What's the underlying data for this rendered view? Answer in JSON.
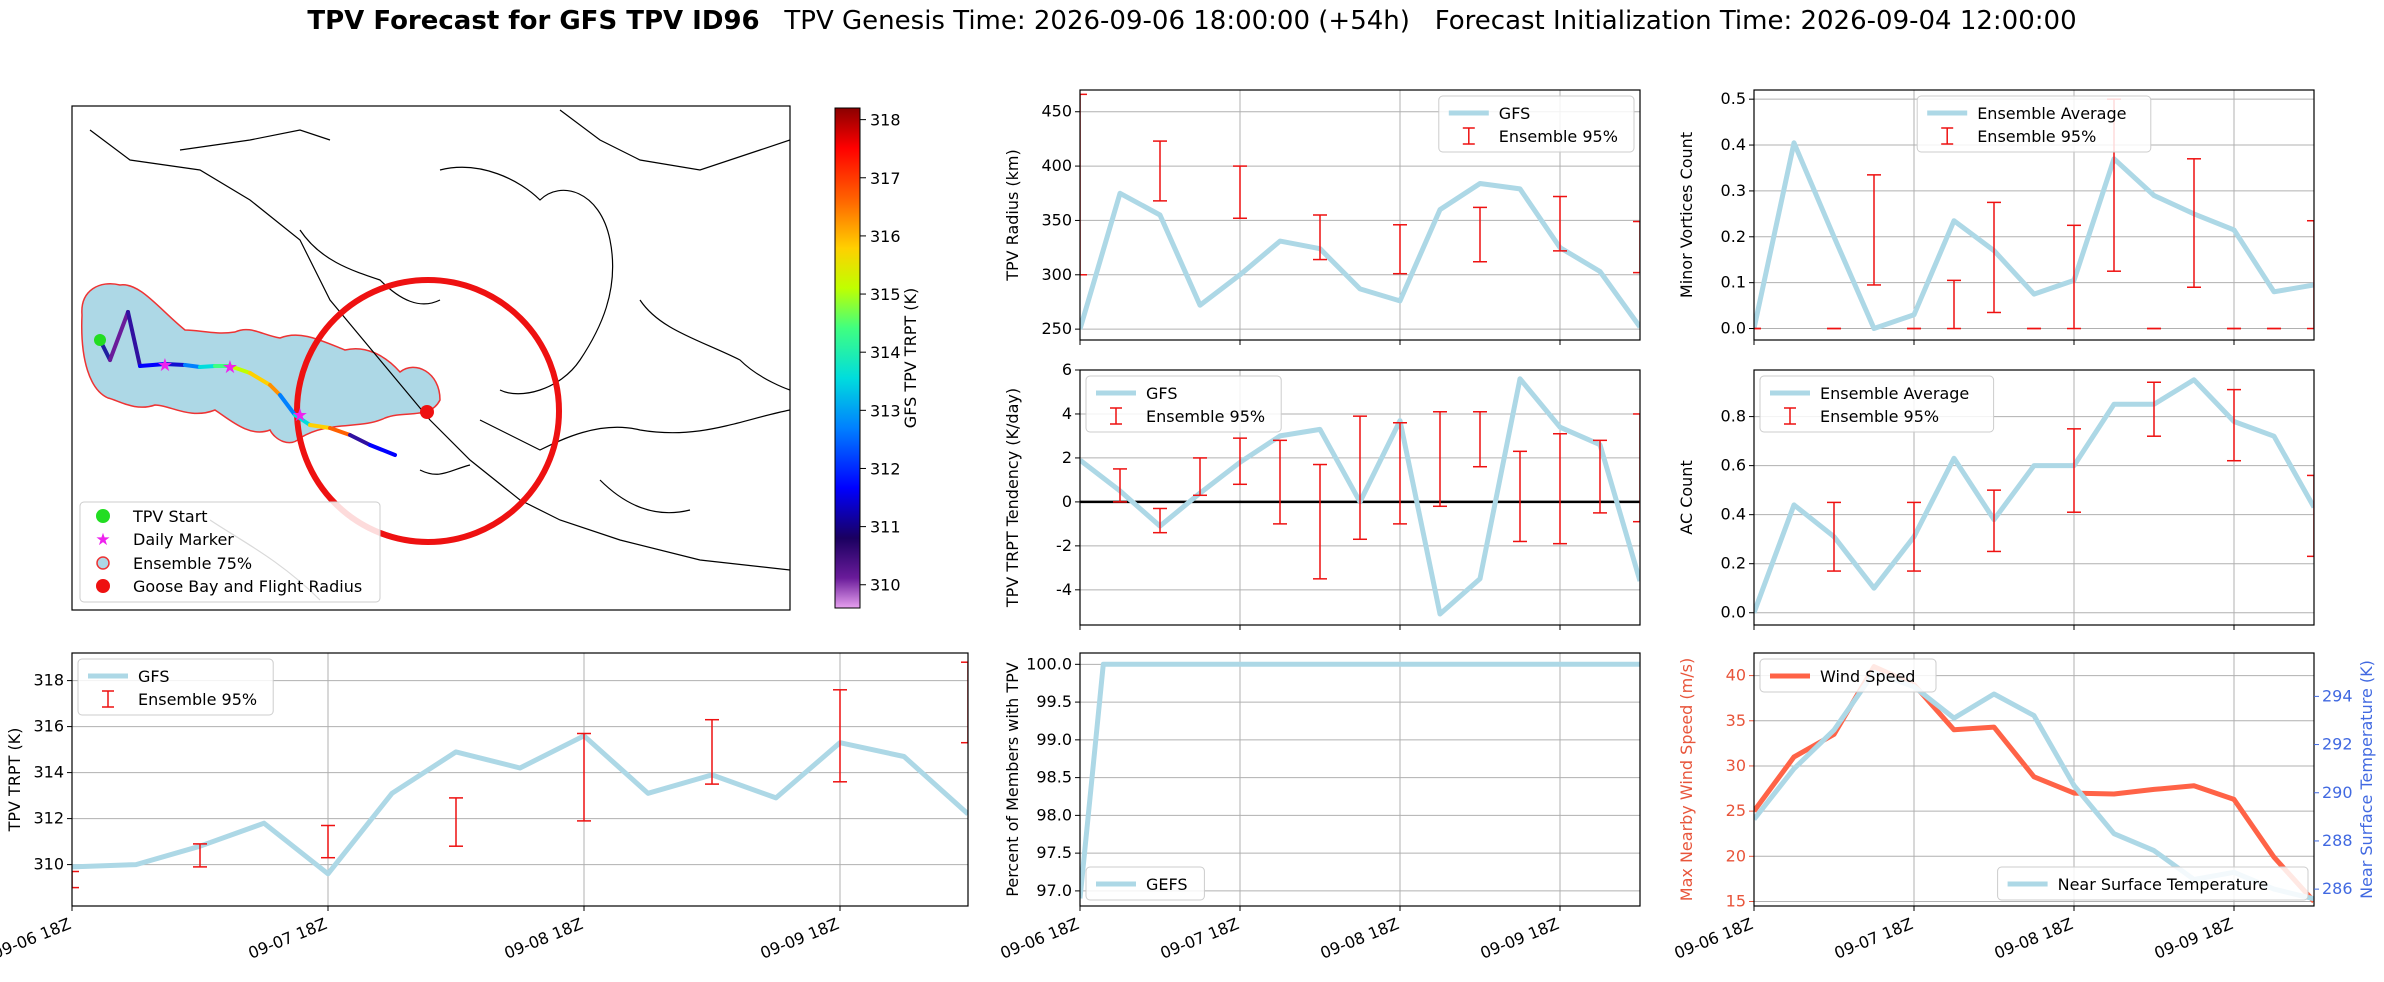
{
  "header": {
    "bold_title": "TPV Forecast for GFS TPV ID96",
    "genesis": "TPV Genesis Time: 2026-09-06 18:00:00 (+54h)",
    "init": "Forecast Initialization Time: 2026-09-04 12:00:00"
  },
  "time_ticks": [
    "09-06 18Z",
    "09-07 18Z",
    "09-08 18Z",
    "09-09 18Z"
  ],
  "chart_data": [
    {
      "id": "map",
      "type": "scatter",
      "colorbar": {
        "label": "GFS TPV TRPT (K)",
        "ticks": [
          310,
          311,
          312,
          313,
          314,
          315,
          316,
          317,
          318
        ],
        "range": [
          309.6,
          318.2
        ],
        "colormap": "rainbow"
      },
      "legend": [
        "TPV Start",
        "Daily Marker",
        "Ensemble 75%",
        "Goose Bay and Flight Radius"
      ],
      "legend_colors": [
        "#22dd22",
        "#ee22ee",
        "#add8e6",
        "#ee1111"
      ]
    },
    {
      "id": "radius",
      "type": "line",
      "ylabel": "TPV Radius (km)",
      "ylim": [
        240,
        470
      ],
      "yticks": [
        250,
        300,
        350,
        400,
        450
      ],
      "x_range": [
        0,
        84
      ],
      "x_ticks": [
        0,
        24,
        48,
        72
      ],
      "legend": [
        "GFS",
        "Ensemble 95%"
      ],
      "legend_position": "top-right",
      "series": [
        {
          "name": "GFS",
          "color": "#add8e6",
          "x": [
            0,
            6,
            12,
            18,
            24,
            30,
            36,
            42,
            48,
            54,
            60,
            66,
            72,
            78,
            84
          ],
          "y": [
            250,
            375,
            355,
            272,
            300,
            331,
            324,
            287,
            276,
            360,
            384,
            379,
            325,
            303,
            252
          ]
        }
      ],
      "errorbars": {
        "name": "Ensemble 95%",
        "color": "#ee1111",
        "x": [
          0,
          12,
          24,
          36,
          48,
          60,
          72,
          84
        ],
        "low": [
          300,
          368,
          352,
          314,
          301,
          312,
          322,
          302
        ],
        "high": [
          466,
          423,
          400,
          355,
          346,
          362,
          372,
          349
        ]
      }
    },
    {
      "id": "minor",
      "type": "line",
      "ylabel": "Minor Vortices Count",
      "ylim": [
        -0.025,
        0.52
      ],
      "yticks": [
        0.0,
        0.1,
        0.2,
        0.3,
        0.4,
        0.5
      ],
      "x_range": [
        0,
        84
      ],
      "x_ticks": [
        0,
        24,
        48,
        72
      ],
      "legend": [
        "Ensemble Average",
        "Ensemble 95%"
      ],
      "legend_position": "top-center",
      "series": [
        {
          "name": "Ensemble Average",
          "color": "#add8e6",
          "x": [
            0,
            6,
            12,
            18,
            24,
            30,
            36,
            42,
            48,
            54,
            60,
            66,
            72,
            78,
            84
          ],
          "y": [
            0.0,
            0.405,
            0.2,
            0.0,
            0.03,
            0.235,
            0.17,
            0.075,
            0.105,
            0.37,
            0.29,
            0.25,
            0.215,
            0.08,
            0.095
          ]
        }
      ],
      "errorbars": {
        "name": "Ensemble 95%",
        "color": "#ee1111",
        "x": [
          0,
          12,
          18,
          24,
          30,
          36,
          42,
          48,
          54,
          60,
          66,
          72,
          78,
          84
        ],
        "low": [
          0.0,
          0.0,
          0.095,
          0.0,
          0.0,
          0.035,
          0.0,
          0.0,
          0.125,
          0.0,
          0.09,
          0.0,
          0.0,
          0.0
        ],
        "high": [
          0.0,
          0.0,
          0.335,
          0.0,
          0.105,
          0.275,
          0.0,
          0.225,
          0.5,
          0.0,
          0.37,
          0.0,
          0.0,
          0.235
        ]
      }
    },
    {
      "id": "tendency",
      "type": "line",
      "ylabel": "TPV TRPT Tendency (K/day)",
      "ylim": [
        -5.6,
        6.0
      ],
      "yticks": [
        -4,
        -2,
        0,
        2,
        4,
        6
      ],
      "x_range": [
        0,
        84
      ],
      "x_ticks": [
        0,
        24,
        48,
        72
      ],
      "legend": [
        "GFS",
        "Ensemble 95%"
      ],
      "legend_position": "top-left",
      "series": [
        {
          "name": "GFS",
          "color": "#add8e6",
          "x": [
            0,
            6,
            12,
            18,
            24,
            30,
            36,
            42,
            48,
            54,
            60,
            66,
            72,
            78,
            84
          ],
          "y": [
            1.9,
            0.5,
            -1.1,
            0.4,
            1.8,
            3.0,
            3.3,
            0.0,
            3.7,
            -5.1,
            -3.5,
            5.6,
            3.4,
            2.6,
            -3.6
          ]
        }
      ],
      "errorbars": {
        "name": "Ensemble 95%",
        "color": "#ee1111",
        "x": [
          6,
          12,
          18,
          24,
          30,
          36,
          42,
          48,
          54,
          60,
          66,
          72,
          78,
          84
        ],
        "low": [
          0.0,
          -1.4,
          0.3,
          0.8,
          -1.0,
          -3.5,
          -1.7,
          -1.0,
          -0.2,
          1.6,
          -1.8,
          -1.9,
          -0.5,
          -0.9
        ],
        "high": [
          1.5,
          -0.3,
          2.0,
          2.9,
          2.8,
          1.7,
          3.9,
          3.6,
          4.1,
          4.1,
          2.3,
          3.1,
          2.8,
          4.0
        ]
      }
    },
    {
      "id": "ac",
      "type": "line",
      "ylabel": "AC Count",
      "ylim": [
        -0.05,
        0.99
      ],
      "yticks": [
        0.0,
        0.2,
        0.4,
        0.6,
        0.8
      ],
      "x_range": [
        0,
        84
      ],
      "x_ticks": [
        0,
        24,
        48,
        72
      ],
      "legend": [
        "Ensemble Average",
        "Ensemble 95%"
      ],
      "legend_position": "top-left",
      "series": [
        {
          "name": "Ensemble Average",
          "color": "#add8e6",
          "x": [
            0,
            6,
            12,
            18,
            24,
            30,
            36,
            42,
            48,
            54,
            60,
            66,
            72,
            78,
            84
          ],
          "y": [
            0.0,
            0.44,
            0.31,
            0.1,
            0.31,
            0.63,
            0.38,
            0.6,
            0.6,
            0.85,
            0.85,
            0.95,
            0.78,
            0.72,
            0.43
          ]
        }
      ],
      "errorbars": {
        "name": "Ensemble 95%",
        "color": "#ee1111",
        "x": [
          12,
          24,
          36,
          48,
          60,
          72,
          84
        ],
        "low": [
          0.17,
          0.17,
          0.25,
          0.41,
          0.72,
          0.62,
          0.23
        ],
        "high": [
          0.45,
          0.45,
          0.5,
          0.75,
          0.94,
          0.91,
          0.56
        ]
      }
    },
    {
      "id": "trpt",
      "type": "line",
      "ylabel": "TPV TRPT (K)",
      "ylim": [
        308.2,
        319.2
      ],
      "yticks": [
        310,
        312,
        314,
        316,
        318
      ],
      "x_range": [
        0,
        84
      ],
      "x_ticks": [
        0,
        24,
        48,
        72
      ],
      "legend": [
        "GFS",
        "Ensemble 95%"
      ],
      "legend_position": "top-left",
      "series": [
        {
          "name": "GFS",
          "color": "#add8e6",
          "x": [
            0,
            6,
            12,
            18,
            24,
            30,
            36,
            42,
            48,
            54,
            60,
            66,
            72,
            78,
            84
          ],
          "y": [
            309.9,
            310.0,
            310.8,
            311.8,
            309.6,
            313.1,
            314.9,
            314.2,
            315.6,
            313.1,
            313.9,
            312.9,
            315.3,
            314.7,
            312.2
          ]
        }
      ],
      "errorbars": {
        "name": "Ensemble 95%",
        "color": "#ee1111",
        "x": [
          0,
          12,
          24,
          36,
          48,
          60,
          72,
          84
        ],
        "low": [
          309.0,
          309.9,
          310.3,
          310.8,
          311.9,
          313.5,
          313.6,
          315.3
        ],
        "high": [
          309.7,
          310.9,
          311.7,
          312.9,
          315.7,
          316.3,
          317.6,
          318.8
        ]
      }
    },
    {
      "id": "percent",
      "type": "line",
      "ylabel": "Percent of Members with TPV",
      "ylim": [
        96.8,
        100.15
      ],
      "yticks": [
        97.0,
        97.5,
        98.0,
        98.5,
        99.0,
        99.5,
        100.0
      ],
      "x_range": [
        0,
        84
      ],
      "x_ticks": [
        0,
        24,
        48,
        72
      ],
      "legend": [
        "GEFS"
      ],
      "legend_position": "bottom-left",
      "series": [
        {
          "name": "GEFS",
          "color": "#add8e6",
          "x": [
            0,
            3.5,
            84
          ],
          "y": [
            96.9,
            100.0,
            100.0
          ]
        }
      ]
    },
    {
      "id": "wind",
      "type": "line",
      "ylabel": "Max Nearby Wind Speed (m/s)",
      "ylim": [
        14.5,
        42.5
      ],
      "yticks": [
        15,
        20,
        25,
        30,
        35,
        40
      ],
      "y2label": "Near Surface Temperature (K)",
      "y2lim": [
        285.3,
        295.8
      ],
      "y2ticks": [
        286,
        288,
        290,
        292,
        294
      ],
      "x_range": [
        0,
        84
      ],
      "x_ticks": [
        0,
        24,
        48,
        72
      ],
      "legend": [
        "Wind Speed"
      ],
      "legend_position": "top-left",
      "legend2": [
        "Near Surface Temperature"
      ],
      "legend2_position": "bottom-right",
      "series": [
        {
          "name": "Wind Speed",
          "color": "#ff6347",
          "axis": "left",
          "x": [
            0,
            6,
            12,
            18,
            24,
            30,
            36,
            42,
            48,
            54,
            60,
            66,
            72,
            78,
            84
          ],
          "y": [
            25,
            31,
            33.5,
            41,
            39,
            34,
            34.3,
            28.8,
            27,
            26.9,
            27.4,
            27.8,
            26.3,
            19.9,
            15
          ]
        },
        {
          "name": "Near Surface Temperature",
          "color": "#add8e6",
          "axis": "right",
          "x": [
            0,
            6,
            12,
            18,
            24,
            30,
            36,
            42,
            48,
            54,
            60,
            66,
            72,
            78,
            84
          ],
          "y": [
            288.9,
            291.0,
            292.6,
            295.0,
            294.4,
            293.1,
            294.1,
            293.2,
            290.3,
            288.3,
            287.6,
            286.4,
            286.7,
            286.0,
            285.6
          ]
        }
      ]
    }
  ]
}
